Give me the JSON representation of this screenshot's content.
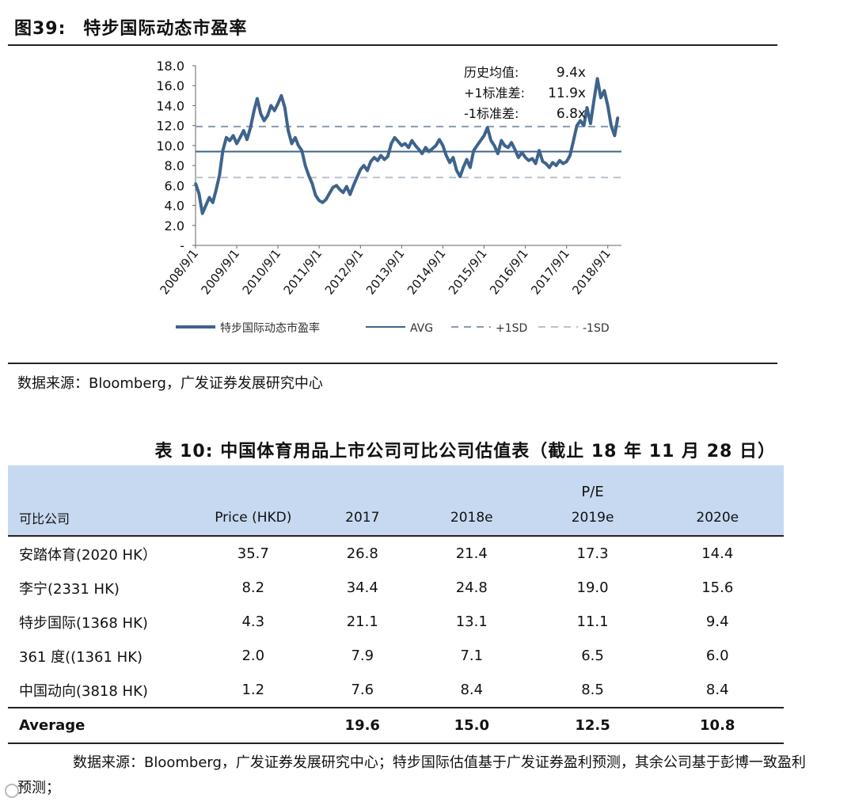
{
  "figure": {
    "number": "图39:",
    "title": "特步国际动态市盈率",
    "source": "数据来源：Bloomberg，广发证券发展研究中心"
  },
  "chart_data": {
    "type": "line",
    "title": "特步国际动态市盈率",
    "ylim": [
      0,
      18
    ],
    "yticks": [
      "-",
      "2.0",
      "4.0",
      "6.0",
      "8.0",
      "10.0",
      "12.0",
      "14.0",
      "16.0",
      "18.0"
    ],
    "x_tick_labels": [
      "2008/9/1",
      "2009/9/1",
      "2010/9/1",
      "2011/9/1",
      "2012/9/1",
      "2013/9/1",
      "2014/9/1",
      "2015/9/1",
      "2016/9/1",
      "2017/9/1",
      "2018/9/1"
    ],
    "x_start": "2008/9/1",
    "x_end": "2018/12/31",
    "series": [
      {
        "name": "特步国际动态市盈率",
        "color": "#3e648c",
        "points": [
          [
            "2008/9/1",
            6.2
          ],
          [
            "2008/10/1",
            5.2
          ],
          [
            "2008/11/1",
            3.2
          ],
          [
            "2008/12/1",
            4.0
          ],
          [
            "2009/1/1",
            4.8
          ],
          [
            "2009/2/1",
            4.3
          ],
          [
            "2009/3/1",
            5.5
          ],
          [
            "2009/4/1",
            7.0
          ],
          [
            "2009/5/1",
            9.5
          ],
          [
            "2009/6/1",
            10.8
          ],
          [
            "2009/7/1",
            10.5
          ],
          [
            "2009/8/1",
            11.0
          ],
          [
            "2009/9/1",
            10.2
          ],
          [
            "2009/10/1",
            10.8
          ],
          [
            "2009/11/1",
            11.5
          ],
          [
            "2009/12/1",
            10.6
          ],
          [
            "2010/1/1",
            11.8
          ],
          [
            "2010/2/1",
            13.5
          ],
          [
            "2010/3/1",
            14.7
          ],
          [
            "2010/4/1",
            13.2
          ],
          [
            "2010/5/1",
            12.5
          ],
          [
            "2010/6/1",
            13.0
          ],
          [
            "2010/7/1",
            14.0
          ],
          [
            "2010/8/1",
            13.5
          ],
          [
            "2010/9/1",
            14.2
          ],
          [
            "2010/10/1",
            15.0
          ],
          [
            "2010/11/1",
            13.8
          ],
          [
            "2010/12/1",
            11.5
          ],
          [
            "2011/1/1",
            10.2
          ],
          [
            "2011/2/1",
            10.8
          ],
          [
            "2011/3/1",
            10.0
          ],
          [
            "2011/4/1",
            9.5
          ],
          [
            "2011/5/1",
            8.0
          ],
          [
            "2011/6/1",
            7.0
          ],
          [
            "2011/7/1",
            6.2
          ],
          [
            "2011/8/1",
            5.0
          ],
          [
            "2011/9/1",
            4.5
          ],
          [
            "2011/10/1",
            4.3
          ],
          [
            "2011/11/1",
            4.6
          ],
          [
            "2011/12/1",
            5.2
          ],
          [
            "2012/1/1",
            5.8
          ],
          [
            "2012/2/1",
            6.0
          ],
          [
            "2012/3/1",
            5.6
          ],
          [
            "2012/4/1",
            5.3
          ],
          [
            "2012/5/1",
            5.9
          ],
          [
            "2012/6/1",
            5.1
          ],
          [
            "2012/7/1",
            6.0
          ],
          [
            "2012/8/1",
            6.8
          ],
          [
            "2012/9/1",
            7.6
          ],
          [
            "2012/10/1",
            8.0
          ],
          [
            "2012/11/1",
            7.5
          ],
          [
            "2012/12/1",
            8.4
          ],
          [
            "2013/1/1",
            8.8
          ],
          [
            "2013/2/1",
            8.5
          ],
          [
            "2013/3/1",
            9.0
          ],
          [
            "2013/4/1",
            8.6
          ],
          [
            "2013/5/1",
            8.9
          ],
          [
            "2013/6/1",
            10.2
          ],
          [
            "2013/7/1",
            10.8
          ],
          [
            "2013/8/1",
            10.4
          ],
          [
            "2013/9/1",
            10.0
          ],
          [
            "2013/10/1",
            10.2
          ],
          [
            "2013/11/1",
            9.8
          ],
          [
            "2013/12/1",
            10.5
          ],
          [
            "2014/1/1",
            10.0
          ],
          [
            "2014/2/1",
            9.6
          ],
          [
            "2014/3/1",
            9.2
          ],
          [
            "2014/4/1",
            9.8
          ],
          [
            "2014/5/1",
            9.4
          ],
          [
            "2014/6/1",
            9.7
          ],
          [
            "2014/7/1",
            10.0
          ],
          [
            "2014/8/1",
            10.6
          ],
          [
            "2014/9/1",
            10.0
          ],
          [
            "2014/10/1",
            9.0
          ],
          [
            "2014/11/1",
            8.3
          ],
          [
            "2014/12/1",
            8.8
          ],
          [
            "2015/1/1",
            7.5
          ],
          [
            "2015/2/1",
            6.9
          ],
          [
            "2015/3/1",
            7.8
          ],
          [
            "2015/4/1",
            8.6
          ],
          [
            "2015/5/1",
            7.8
          ],
          [
            "2015/6/1",
            9.5
          ],
          [
            "2015/7/1",
            10.0
          ],
          [
            "2015/8/1",
            10.5
          ],
          [
            "2015/9/1",
            11.0
          ],
          [
            "2015/10/1",
            11.8
          ],
          [
            "2015/11/1",
            10.5
          ],
          [
            "2015/12/1",
            10.0
          ],
          [
            "2016/1/1",
            9.2
          ],
          [
            "2016/2/1",
            10.5
          ],
          [
            "2016/3/1",
            10.0
          ],
          [
            "2016/4/1",
            9.8
          ],
          [
            "2016/5/1",
            10.3
          ],
          [
            "2016/6/1",
            9.6
          ],
          [
            "2016/7/1",
            8.8
          ],
          [
            "2016/8/1",
            9.3
          ],
          [
            "2016/9/1",
            8.8
          ],
          [
            "2016/10/1",
            8.5
          ],
          [
            "2016/11/1",
            8.7
          ],
          [
            "2016/12/1",
            8.2
          ],
          [
            "2017/1/1",
            9.5
          ],
          [
            "2017/2/1",
            8.4
          ],
          [
            "2017/3/1",
            8.2
          ],
          [
            "2017/4/1",
            7.8
          ],
          [
            "2017/5/1",
            8.3
          ],
          [
            "2017/6/1",
            8.0
          ],
          [
            "2017/7/1",
            8.5
          ],
          [
            "2017/8/1",
            8.2
          ],
          [
            "2017/9/1",
            8.4
          ],
          [
            "2017/10/1",
            9.0
          ],
          [
            "2017/11/1",
            10.5
          ],
          [
            "2017/12/1",
            12.0
          ],
          [
            "2018/1/1",
            12.5
          ],
          [
            "2018/2/1",
            12.0
          ],
          [
            "2018/3/1",
            13.8
          ],
          [
            "2018/4/1",
            12.2
          ],
          [
            "2018/5/1",
            14.5
          ],
          [
            "2018/6/1",
            16.7
          ],
          [
            "2018/7/1",
            14.8
          ],
          [
            "2018/8/1",
            15.5
          ],
          [
            "2018/9/1",
            14.0
          ],
          [
            "2018/10/1",
            12.0
          ],
          [
            "2018/11/1",
            11.0
          ],
          [
            "2018/11/28",
            12.8
          ]
        ]
      },
      {
        "name": "AVG",
        "constant": 9.4,
        "color": "#3e648c",
        "style": "solid"
      },
      {
        "name": "+1SD",
        "constant": 11.9,
        "color": "#8a9bb0",
        "style": "dashed"
      },
      {
        "name": "-1SD",
        "constant": 6.8,
        "color": "#b8c2cc",
        "style": "dashed"
      }
    ],
    "annotations": [
      {
        "label": "历史均值:",
        "value": "9.4x"
      },
      {
        "label": "+1标准差:",
        "value": "11.9x"
      },
      {
        "label": "-1标准差:",
        "value": "6.8x"
      }
    ],
    "legend": [
      "特步国际动态市盈率",
      "AVG",
      "+1SD",
      "-1SD"
    ],
    "legend_position": "bottom"
  },
  "table": {
    "number": "表 10:",
    "title": "中国体育用品上市公司可比公司估值表（截止 18 年 11 月 28 日）",
    "pe_label": "P/E",
    "headers": [
      "可比公司",
      "Price (HKD)",
      "2017",
      "2018e",
      "2019e",
      "2020e"
    ],
    "rows": [
      [
        "安踏体育(2020 HK）",
        "35.7",
        "26.8",
        "21.4",
        "17.3",
        "14.4"
      ],
      [
        "李宁(2331 HK)",
        "8.2",
        "34.4",
        "24.8",
        "19.0",
        "15.6"
      ],
      [
        "特步国际(1368 HK)",
        "4.3",
        "21.1",
        "13.1",
        "11.1",
        "9.4"
      ],
      [
        "361 度((1361 HK)",
        "2.0",
        "7.9",
        "7.1",
        "6.5",
        "6.0"
      ],
      [
        "中国动向(3818 HK)",
        "1.2",
        "7.6",
        "8.4",
        "8.5",
        "8.4"
      ]
    ],
    "average": [
      "Average",
      "",
      "19.6",
      "15.0",
      "12.5",
      "10.8"
    ],
    "note": "数据来源：Bloomberg，广发证券发展研究中心；特步国际估值基于广发证券盈利预测，其余公司基于彭博一致盈利预测；"
  }
}
